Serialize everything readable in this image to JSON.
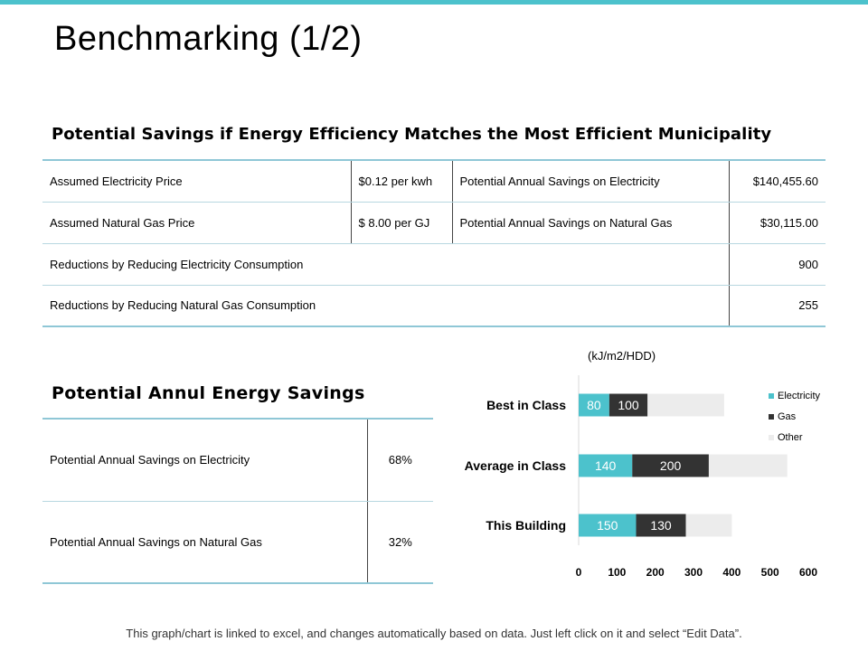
{
  "page_title": "Benchmarking (1/2)",
  "section1_title": "Potential Savings if Energy Efficiency Matches the Most Efficient  Municipality",
  "table1": {
    "rows": [
      [
        "Assumed Electricity Price",
        "$0.12 per kwh",
        "Potential Annual Savings on Electricity",
        "$140,455.60"
      ],
      [
        "Assumed Natural Gas Price",
        "$ 8.00 per GJ",
        "Potential Annual Savings on Natural Gas",
        "$30,115.00"
      ],
      [
        "Reductions by Reducing Electricity Consumption",
        "900"
      ],
      [
        "Reductions by Reducing Natural Gas Consumption",
        "255"
      ]
    ]
  },
  "section2_title": "Potential Annul Energy Savings",
  "table2": {
    "rows": [
      [
        "Potential Annual Savings on Electricity",
        "68%"
      ],
      [
        "Potential Annual Savings on Natural Gas",
        "32%"
      ]
    ]
  },
  "chart_unit": "(kJ/m2/HDD)",
  "footer_note": "This graph/chart is linked to excel, and changes automatically based on data. Just left click on it and select “Edit Data”.",
  "colors": {
    "accent": "#4cc2cc",
    "electricity": "#4cc2cc",
    "gas": "#333333",
    "other": "#ececec"
  },
  "chart_data": {
    "type": "bar",
    "orientation": "horizontal",
    "stacked": true,
    "categories": [
      "Best in Class",
      "Average in Class",
      "This Building"
    ],
    "series": [
      {
        "name": "Electricity",
        "values": [
          80,
          140,
          150
        ],
        "color": "#4cc2cc"
      },
      {
        "name": "Gas",
        "values": [
          100,
          200,
          130
        ],
        "color": "#333333"
      },
      {
        "name": "Other",
        "values": [
          200,
          205,
          120
        ],
        "color": "#ececec"
      }
    ],
    "data_labels": [
      [
        "80",
        "140",
        "150"
      ],
      [
        "100",
        "200",
        "130"
      ]
    ],
    "xlim": [
      0,
      600
    ],
    "xticks": [
      0,
      100,
      200,
      300,
      400,
      500,
      600
    ],
    "legend": "right",
    "grid": false
  }
}
